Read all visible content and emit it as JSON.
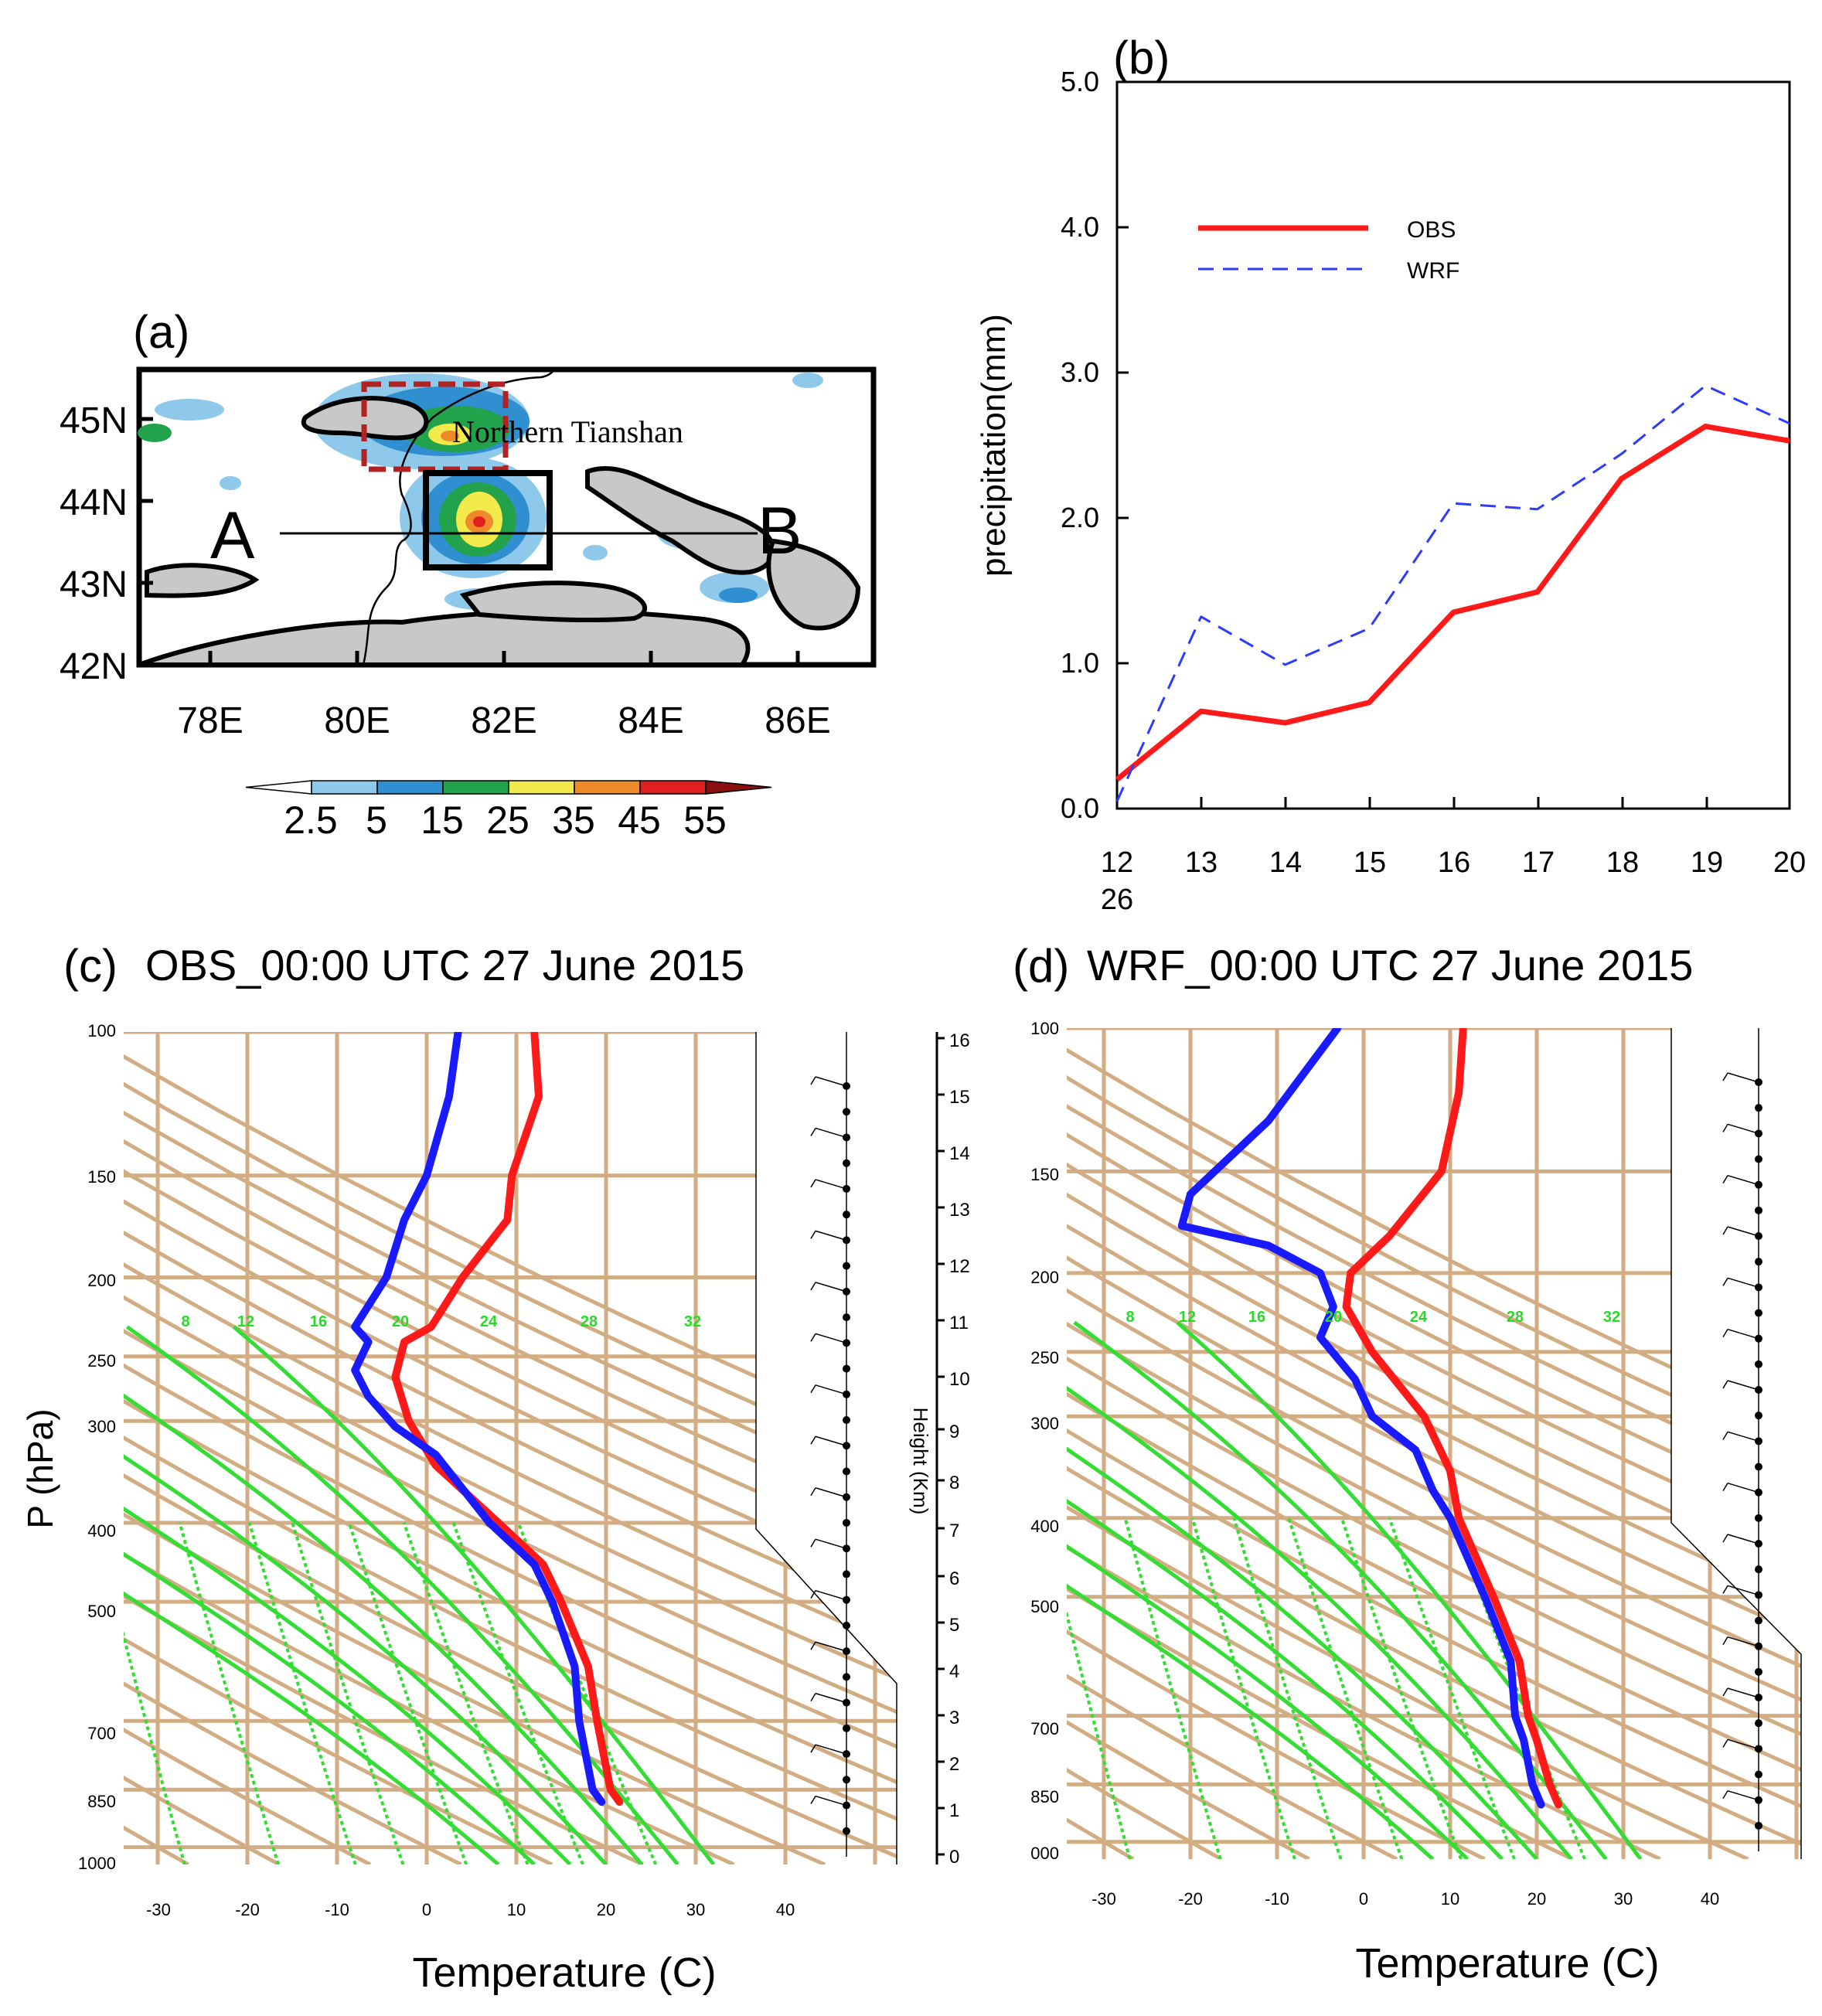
{
  "panels": {
    "a": {
      "label": "(a)",
      "lat_ticks": [
        "45N",
        "44N",
        "43N",
        "42N"
      ],
      "lon_ticks": [
        "78E",
        "80E",
        "82E",
        "84E",
        "86E"
      ],
      "region_label": "Northern Tianshan",
      "point_a": "A",
      "point_b": "B",
      "colorbar": {
        "labels": [
          "2.5",
          "5",
          "15",
          "25",
          "35",
          "45",
          "55"
        ],
        "colors": [
          "#ffffff",
          "#8ec9ec",
          "#2f8fd0",
          "#22a24a",
          "#f2ea4a",
          "#ef8a2a",
          "#e02020",
          "#8a0e0e"
        ]
      }
    },
    "b": {
      "label": "(b)",
      "ylabel": "precipitation(mm)",
      "yticks": [
        "0.0",
        "1.0",
        "2.0",
        "3.0",
        "4.0",
        "5.0"
      ],
      "xticks": [
        "12",
        "13",
        "14",
        "15",
        "16",
        "17",
        "18",
        "19",
        "20"
      ],
      "xsublabel": "26",
      "legend": [
        "OBS",
        "WRF"
      ]
    },
    "c": {
      "title": "OBS_00:00 UTC 27 June 2015",
      "label": "(c)",
      "ylabel": "P (hPa)",
      "xlabel": "Temperature (C)",
      "height_label": "Height (Km)",
      "pressure_ticks": [
        "100",
        "150",
        "200",
        "250",
        "300",
        "400",
        "500",
        "700",
        "850",
        "1000"
      ],
      "temp_ticks": [
        "-30",
        "-20",
        "-10",
        "0",
        "10",
        "20",
        "30",
        "40"
      ],
      "height_ticks": [
        "16",
        "15",
        "14",
        "13",
        "12",
        "11",
        "10",
        "9",
        "8",
        "7",
        "6",
        "5",
        "4",
        "3",
        "2",
        "1",
        "0"
      ],
      "mixing_labels": [
        "8",
        "12",
        "16",
        "20",
        "24",
        "28",
        "32"
      ]
    },
    "d": {
      "title": "WRF_00:00 UTC 27 June 2015",
      "label": "(d)",
      "xlabel": "Temperature (C)",
      "pressure_ticks": [
        "100",
        "150",
        "200",
        "250",
        "300",
        "400",
        "500",
        "700",
        "850",
        "000"
      ],
      "temp_ticks": [
        "-30",
        "-20",
        "-10",
        "0",
        "10",
        "20",
        "30",
        "40"
      ],
      "mixing_labels": [
        "8",
        "12",
        "16",
        "20",
        "24",
        "28",
        "32"
      ]
    }
  },
  "chart_data": [
    {
      "type": "line",
      "title": "(b)",
      "xlabel": "",
      "ylabel": "precipitation(mm)",
      "x": [
        12,
        13,
        14,
        15,
        16,
        17,
        18,
        19,
        20
      ],
      "ylim": [
        0,
        5
      ],
      "series": [
        {
          "name": "OBS",
          "color": "#ff1a1a",
          "style": "solid",
          "values": [
            0.2,
            0.67,
            0.59,
            0.73,
            1.35,
            1.49,
            2.27,
            2.63,
            2.53
          ]
        },
        {
          "name": "WRF",
          "color": "#2b3bff",
          "style": "dashed",
          "values": [
            0.05,
            1.32,
            0.99,
            1.24,
            2.1,
            2.06,
            2.44,
            2.91,
            2.65
          ]
        }
      ]
    },
    {
      "type": "line",
      "title": "OBS_00:00 UTC 27 June 2015",
      "xlabel": "Temperature (C)",
      "ylabel": "P (hPa)",
      "ylim": [
        1000,
        100
      ],
      "xlim": [
        -35,
        50
      ],
      "series": [
        {
          "name": "temperature",
          "color": "#ff1a1a",
          "pressure": [
            880,
            850,
            700,
            600,
            500,
            450,
            400,
            340,
            300,
            265,
            240,
            230,
            200,
            170,
            150,
            120,
            100
          ],
          "values": [
            21.5,
            20.5,
            19,
            18,
            15,
            13,
            8,
            1,
            -2,
            -3.5,
            -2.5,
            0.5,
            4,
            9,
            9.5,
            12.5,
            12
          ]
        },
        {
          "name": "dewpoint",
          "color": "#1a1aff",
          "pressure": [
            880,
            850,
            700,
            600,
            500,
            450,
            400,
            330,
            305,
            280,
            260,
            240,
            230,
            200,
            170,
            150,
            120,
            100
          ],
          "values": [
            19.5,
            18.5,
            17,
            16.5,
            14,
            12,
            7,
            1,
            -3.5,
            -6.5,
            -8,
            -6.5,
            -8,
            -4.5,
            -2.5,
            0,
            2.5,
            3.5
          ]
        }
      ]
    },
    {
      "type": "line",
      "title": "WRF_00:00 UTC 27 June 2015",
      "xlabel": "Temperature (C)",
      "ylabel": "",
      "ylim": [
        1000,
        100
      ],
      "xlim": [
        -35,
        50
      ],
      "series": [
        {
          "name": "temperature",
          "color": "#ff1a1a",
          "pressure": [
            900,
            850,
            750,
            700,
            600,
            500,
            400,
            350,
            300,
            250,
            220,
            200,
            180,
            150,
            120,
            100
          ],
          "values": [
            22.5,
            21.5,
            20,
            19,
            18,
            15,
            11,
            10,
            7,
            1,
            -2,
            -1.5,
            3,
            9,
            11,
            11.5
          ]
        },
        {
          "name": "dewpoint",
          "color": "#1a1aff",
          "pressure": [
            900,
            850,
            750,
            700,
            600,
            500,
            400,
            370,
            330,
            300,
            270,
            240,
            220,
            200,
            185,
            175,
            160,
            130,
            100
          ],
          "values": [
            20.5,
            19.5,
            18.5,
            17.5,
            17,
            14,
            10,
            8,
            6,
            1,
            -1,
            -5,
            -3.5,
            -5,
            -11,
            -21,
            -20,
            -11,
            -3
          ]
        }
      ]
    }
  ]
}
